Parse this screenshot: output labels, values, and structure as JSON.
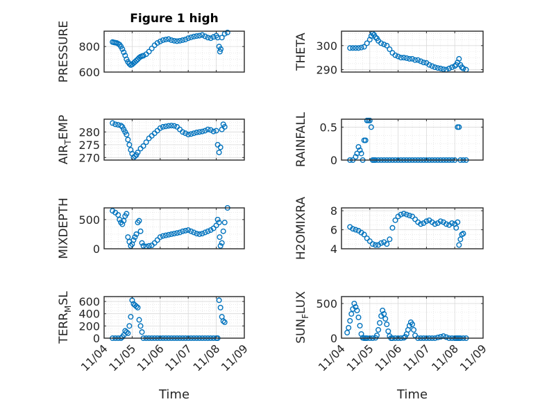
{
  "figure": {
    "background": "#ffffff",
    "marker_color": "#0072BD"
  },
  "chart_data": [
    {
      "type": "scatter",
      "title": "Figure 1 high",
      "xlabel": "",
      "ylabel": "PRESSURE",
      "ylim": [
        600,
        920
      ],
      "yticks": [
        600,
        800
      ],
      "x": [
        0.3,
        0.35,
        0.4,
        0.45,
        0.5,
        0.55,
        0.6,
        0.65,
        0.7,
        0.75,
        0.8,
        0.85,
        0.9,
        0.95,
        1.0,
        1.05,
        1.1,
        1.15,
        1.2,
        1.25,
        1.3,
        1.35,
        1.4,
        1.5,
        1.6,
        1.7,
        1.8,
        1.9,
        2.0,
        2.1,
        2.2,
        2.3,
        2.4,
        2.5,
        2.6,
        2.7,
        2.8,
        2.9,
        3.0,
        3.1,
        3.2,
        3.3,
        3.4,
        3.5,
        3.6,
        3.7,
        3.8,
        3.9,
        4.0,
        4.05,
        4.1,
        4.13,
        4.16,
        4.2,
        4.3,
        4.4
      ],
      "y": [
        835,
        832,
        830,
        828,
        822,
        815,
        800,
        780,
        755,
        730,
        700,
        680,
        665,
        655,
        660,
        670,
        680,
        690,
        700,
        712,
        720,
        725,
        728,
        740,
        760,
        785,
        810,
        828,
        840,
        850,
        855,
        858,
        850,
        845,
        842,
        845,
        850,
        855,
        865,
        872,
        878,
        882,
        885,
        890,
        880,
        870,
        865,
        875,
        885,
        870,
        800,
        760,
        780,
        870,
        900,
        910
      ]
    },
    {
      "type": "scatter",
      "xlabel": "",
      "ylabel": "THETA",
      "ylim": [
        289,
        306
      ],
      "yticks": [
        290,
        300
      ],
      "x": [
        0.3,
        0.4,
        0.5,
        0.6,
        0.7,
        0.8,
        0.9,
        1.0,
        1.05,
        1.1,
        1.15,
        1.2,
        1.25,
        1.3,
        1.4,
        1.5,
        1.6,
        1.7,
        1.8,
        1.9,
        2.0,
        2.1,
        2.2,
        2.3,
        2.4,
        2.5,
        2.6,
        2.7,
        2.8,
        2.9,
        3.0,
        3.1,
        3.2,
        3.3,
        3.4,
        3.5,
        3.6,
        3.7,
        3.8,
        3.9,
        4.0,
        4.05,
        4.1,
        4.15,
        4.2,
        4.25,
        4.3,
        4.4
      ],
      "y": [
        299,
        299,
        299,
        299,
        299.2,
        299.5,
        301,
        302.5,
        304,
        305,
        304.5,
        303.5,
        303,
        302,
        301,
        300.5,
        300,
        298.5,
        297,
        296,
        295.5,
        295,
        295,
        294.8,
        294.5,
        294.5,
        294,
        294,
        293.5,
        293,
        292.8,
        292,
        291.5,
        291,
        290.7,
        290.5,
        290.2,
        290,
        290.5,
        291,
        291.5,
        292,
        293,
        294.5,
        292,
        291,
        290.5,
        290
      ]
    },
    {
      "type": "scatter",
      "xlabel": "",
      "ylabel": "AIR_TEMP",
      "ylabel_parts": [
        "AIR",
        "T",
        "EMP"
      ],
      "ylim": [
        269,
        285
      ],
      "yticks": [
        270,
        275,
        280
      ],
      "x": [
        0.3,
        0.4,
        0.5,
        0.6,
        0.65,
        0.7,
        0.75,
        0.8,
        0.85,
        0.9,
        0.95,
        1.0,
        1.05,
        1.1,
        1.15,
        1.2,
        1.3,
        1.4,
        1.5,
        1.6,
        1.7,
        1.8,
        1.9,
        2.0,
        2.1,
        2.2,
        2.3,
        2.4,
        2.5,
        2.6,
        2.7,
        2.8,
        2.9,
        3.0,
        3.1,
        3.2,
        3.3,
        3.4,
        3.5,
        3.6,
        3.7,
        3.8,
        3.9,
        4.0,
        4.05,
        4.1,
        4.15,
        4.2,
        4.25,
        4.3
      ],
      "y": [
        283.5,
        283,
        282.8,
        282.5,
        282,
        281,
        280,
        279,
        277,
        275,
        273,
        271.5,
        270,
        270.5,
        271,
        272,
        273.5,
        274.5,
        276,
        277.5,
        278.5,
        279.5,
        280.5,
        281.5,
        282,
        282.2,
        282.4,
        282.5,
        282.4,
        282,
        281,
        280,
        279.5,
        279,
        279.2,
        279.5,
        279.8,
        280,
        280.2,
        280.5,
        281,
        280.8,
        280.2,
        280.5,
        275,
        272,
        274,
        281,
        283,
        282
      ]
    },
    {
      "type": "scatter",
      "xlabel": "",
      "ylabel": "RAINFALL",
      "ylim": [
        0,
        0.62
      ],
      "yticks": [
        0,
        0.5
      ],
      "x": [
        0.3,
        0.4,
        0.5,
        0.55,
        0.6,
        0.65,
        0.7,
        0.75,
        0.8,
        0.85,
        0.9,
        0.95,
        1.0,
        1.05,
        1.1,
        1.15,
        1.2,
        1.3,
        1.4,
        1.5,
        1.6,
        1.7,
        1.8,
        1.9,
        2.0,
        2.1,
        2.2,
        2.3,
        2.4,
        2.5,
        2.6,
        2.7,
        2.8,
        2.9,
        3.0,
        3.1,
        3.2,
        3.3,
        3.4,
        3.5,
        3.6,
        3.7,
        3.8,
        3.9,
        4.0,
        4.1,
        4.15,
        4.2,
        4.3,
        4.4
      ],
      "y": [
        0,
        0,
        0.05,
        0.1,
        0.2,
        0.15,
        0.1,
        0,
        0.3,
        0.3,
        0.6,
        0.6,
        0.6,
        0.5,
        0,
        0,
        0,
        0,
        0,
        0,
        0,
        0,
        0,
        0,
        0,
        0,
        0,
        0,
        0,
        0,
        0,
        0,
        0,
        0,
        0,
        0,
        0,
        0,
        0,
        0,
        0,
        0,
        0,
        0,
        0,
        0.5,
        0.5,
        0,
        0,
        0
      ]
    },
    {
      "type": "scatter",
      "xlabel": "",
      "ylabel": "MIXDEPTH",
      "ylim": [
        0,
        700
      ],
      "yticks": [
        0,
        500
      ],
      "x": [
        0.3,
        0.4,
        0.5,
        0.55,
        0.6,
        0.65,
        0.7,
        0.75,
        0.8,
        0.85,
        0.9,
        0.95,
        1.0,
        1.05,
        1.1,
        1.15,
        1.2,
        1.25,
        1.3,
        1.35,
        1.4,
        1.5,
        1.6,
        1.7,
        1.8,
        1.9,
        2.0,
        2.1,
        2.2,
        2.3,
        2.4,
        2.5,
        2.6,
        2.7,
        2.8,
        2.9,
        3.0,
        3.1,
        3.2,
        3.3,
        3.4,
        3.5,
        3.6,
        3.7,
        3.8,
        3.9,
        4.0,
        4.05,
        4.1,
        4.12,
        4.15,
        4.2,
        4.25,
        4.3,
        4.4
      ],
      "y": [
        650,
        620,
        580,
        500,
        450,
        420,
        480,
        560,
        600,
        200,
        120,
        50,
        80,
        150,
        200,
        250,
        450,
        480,
        300,
        100,
        50,
        40,
        50,
        60,
        100,
        150,
        200,
        220,
        230,
        240,
        250,
        260,
        270,
        280,
        300,
        310,
        320,
        300,
        280,
        260,
        250,
        260,
        280,
        300,
        320,
        350,
        400,
        500,
        450,
        200,
        50,
        100,
        300,
        450,
        700
      ]
    },
    {
      "type": "scatter",
      "xlabel": "",
      "ylabel": "H2OMIXRA",
      "ylim": [
        4,
        8.3
      ],
      "yticks": [
        4,
        6,
        8
      ],
      "x": [
        0.3,
        0.4,
        0.5,
        0.6,
        0.7,
        0.8,
        0.9,
        1.0,
        1.1,
        1.2,
        1.3,
        1.4,
        1.5,
        1.6,
        1.7,
        1.8,
        1.9,
        2.0,
        2.1,
        2.2,
        2.3,
        2.4,
        2.5,
        2.6,
        2.7,
        2.8,
        2.9,
        3.0,
        3.1,
        3.2,
        3.3,
        3.4,
        3.5,
        3.6,
        3.7,
        3.8,
        3.9,
        4.0,
        4.05,
        4.1,
        4.15,
        4.2,
        4.25,
        4.3
      ],
      "y": [
        6.3,
        6.1,
        6.0,
        5.9,
        5.7,
        5.5,
        5.1,
        4.8,
        4.5,
        4.4,
        4.4,
        4.6,
        4.7,
        4.5,
        5.0,
        6.2,
        7.0,
        7.4,
        7.6,
        7.7,
        7.6,
        7.5,
        7.4,
        7.1,
        6.8,
        6.6,
        6.7,
        6.9,
        7.0,
        6.8,
        6.6,
        6.7,
        6.9,
        6.8,
        6.6,
        6.5,
        6.7,
        6.6,
        6.2,
        6.8,
        4.4,
        5.0,
        5.5,
        5.6
      ]
    },
    {
      "type": "scatter",
      "xlabel": "Time",
      "ylabel": "TERR_MSL",
      "ylabel_parts": [
        "TERR",
        "M",
        "SL"
      ],
      "ylim": [
        0,
        680
      ],
      "yticks": [
        0,
        200,
        400,
        600
      ],
      "x": [
        0.3,
        0.4,
        0.5,
        0.6,
        0.65,
        0.7,
        0.75,
        0.8,
        0.85,
        0.9,
        0.95,
        1.0,
        1.05,
        1.1,
        1.15,
        1.2,
        1.25,
        1.3,
        1.35,
        1.4,
        1.5,
        1.6,
        1.7,
        1.8,
        1.9,
        2.0,
        2.1,
        2.2,
        2.3,
        2.4,
        2.5,
        2.6,
        2.7,
        2.8,
        2.9,
        3.0,
        3.1,
        3.2,
        3.3,
        3.4,
        3.5,
        3.6,
        3.7,
        3.8,
        3.9,
        4.0,
        4.05,
        4.1,
        4.15,
        4.2,
        4.25,
        4.3
      ],
      "y": [
        0,
        0,
        0,
        0,
        20,
        50,
        120,
        100,
        80,
        200,
        350,
        620,
        560,
        540,
        520,
        500,
        300,
        200,
        100,
        0,
        0,
        0,
        0,
        0,
        0,
        0,
        0,
        0,
        0,
        0,
        0,
        0,
        0,
        0,
        0,
        0,
        0,
        0,
        0,
        0,
        0,
        0,
        0,
        0,
        0,
        0,
        0,
        620,
        500,
        350,
        280,
        260
      ]
    },
    {
      "type": "scatter",
      "xlabel": "Time",
      "ylabel": "SUN_FLUX",
      "ylabel_parts": [
        "SUN",
        "F",
        "LUX"
      ],
      "ylim": [
        0,
        600
      ],
      "yticks": [
        0,
        500
      ],
      "x": [
        0.2,
        0.25,
        0.3,
        0.35,
        0.4,
        0.45,
        0.5,
        0.55,
        0.6,
        0.65,
        0.7,
        0.75,
        0.8,
        0.85,
        0.9,
        1.0,
        1.1,
        1.2,
        1.25,
        1.3,
        1.35,
        1.4,
        1.45,
        1.5,
        1.55,
        1.6,
        1.65,
        1.7,
        1.75,
        1.8,
        1.9,
        2.0,
        2.1,
        2.2,
        2.25,
        2.3,
        2.35,
        2.4,
        2.45,
        2.5,
        2.55,
        2.6,
        2.7,
        2.8,
        2.9,
        3.0,
        3.1,
        3.2,
        3.3,
        3.4,
        3.5,
        3.6,
        3.7,
        3.8,
        3.9,
        4.0,
        4.05,
        4.1,
        4.15,
        4.2,
        4.3,
        4.4
      ],
      "y": [
        80,
        150,
        250,
        350,
        420,
        500,
        450,
        400,
        300,
        180,
        60,
        5,
        0,
        0,
        0,
        0,
        0,
        5,
        40,
        120,
        220,
        320,
        400,
        350,
        280,
        200,
        100,
        30,
        0,
        0,
        0,
        0,
        0,
        5,
        20,
        60,
        120,
        180,
        230,
        200,
        120,
        40,
        0,
        0,
        0,
        0,
        0,
        0,
        0,
        10,
        20,
        30,
        15,
        0,
        0,
        0,
        0,
        0,
        0,
        0,
        0,
        0
      ]
    }
  ],
  "x_axis": {
    "ticks": [
      "11/04",
      "11/05",
      "11/06",
      "11/07",
      "11/08",
      "11/09"
    ]
  }
}
